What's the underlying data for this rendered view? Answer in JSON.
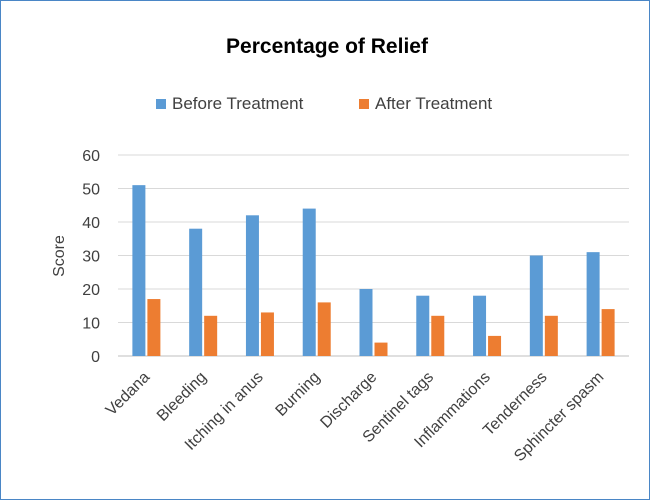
{
  "chart_data": {
    "type": "bar",
    "title": "Percentage of Relief",
    "xlabel": "",
    "ylabel": "Score",
    "ylim": [
      0,
      60
    ],
    "yticks": [
      0,
      10,
      20,
      30,
      40,
      50,
      60
    ],
    "grid": true,
    "legend_position": "top",
    "categories": [
      "Vedana",
      "Bleeding",
      "Itching in anus",
      "Burning",
      "Discharge",
      "Sentinel tags",
      "Inflammations",
      "Tenderness",
      "Sphincter spasm"
    ],
    "series": [
      {
        "name": "Before Treatment",
        "color": "#5b9bd5",
        "values": [
          51,
          38,
          42,
          44,
          20,
          18,
          18,
          30,
          31
        ]
      },
      {
        "name": "After Treatment",
        "color": "#ed7d31",
        "values": [
          17,
          12,
          13,
          16,
          4,
          12,
          6,
          12,
          14
        ]
      }
    ]
  }
}
